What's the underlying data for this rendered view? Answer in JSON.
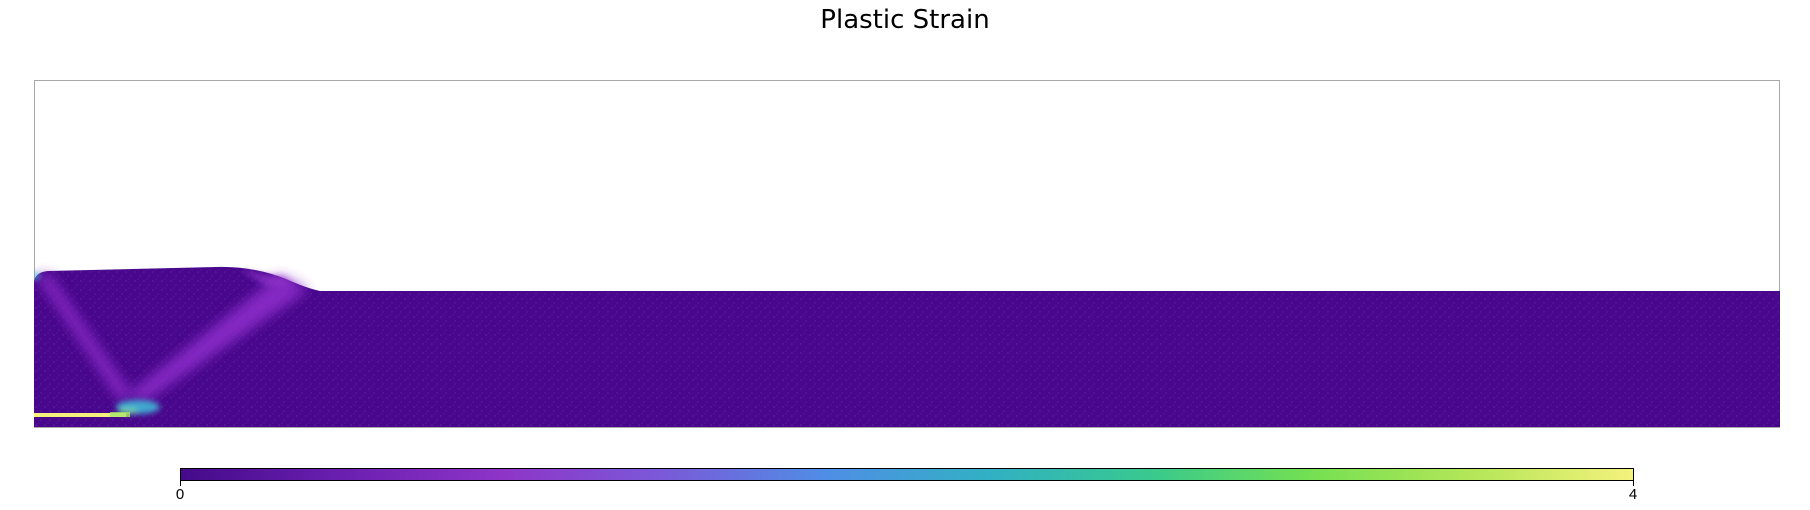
{
  "chart_data": {
    "type": "heatmap",
    "title": "Plastic Strain",
    "xlabel": "",
    "ylabel": "",
    "grid": false,
    "colorbar": {
      "min_label": "0",
      "max_label": "4",
      "range": [
        0,
        4
      ],
      "orientation": "horizontal",
      "placement": "bottom",
      "colormap": [
        "#440a8a",
        "#6a1fb0",
        "#8e35c8",
        "#7a5ad8",
        "#4f8ee6",
        "#32b0c4",
        "#38c98e",
        "#74e052",
        "#b4e658",
        "#f4f27c"
      ]
    },
    "field": {
      "background_value": 0,
      "background_color": "#48078c",
      "shear_band_color": "#8b2ac6",
      "high_strain_color": "#f4f27c",
      "mid_strain_color": "#3fb7d6"
    }
  }
}
